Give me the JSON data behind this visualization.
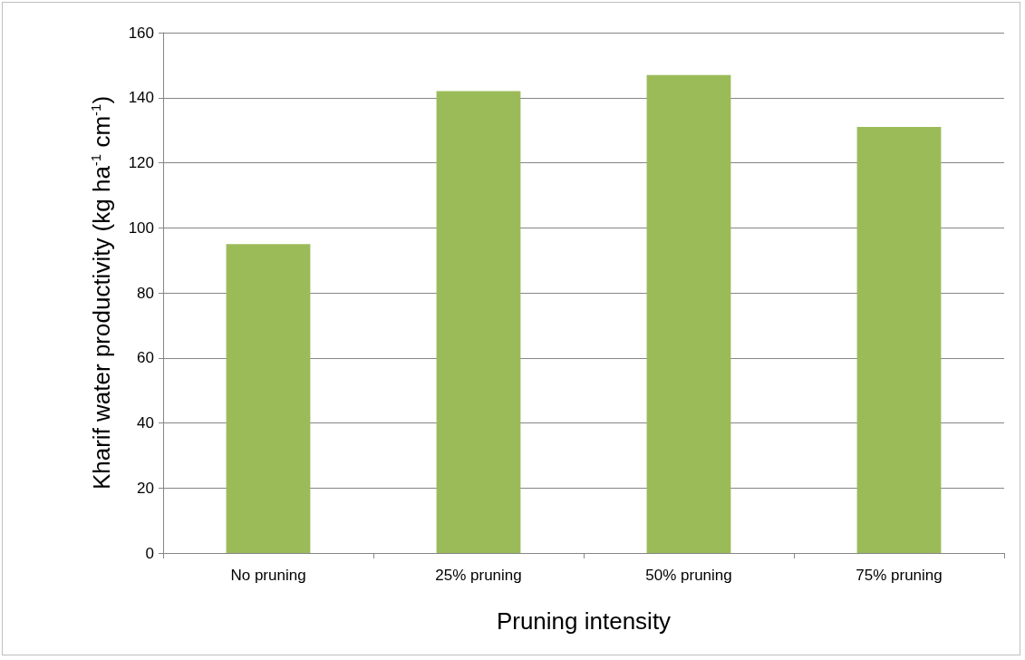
{
  "chart_data": {
    "type": "bar",
    "xlabel": "Pruning intensity",
    "ylabel": "Kharif water productivity (kg ha$^{-1}$ cm$^{-1}$)",
    "categories": [
      "No pruning",
      "25% pruning",
      "50% pruning",
      "75% pruning"
    ],
    "values": [
      95,
      142,
      147,
      131
    ],
    "color": "#9bbb59",
    "ylim": [
      0,
      160
    ],
    "yticks": [
      0,
      20,
      40,
      60,
      80,
      100,
      120,
      140,
      160
    ],
    "grid": "y"
  }
}
